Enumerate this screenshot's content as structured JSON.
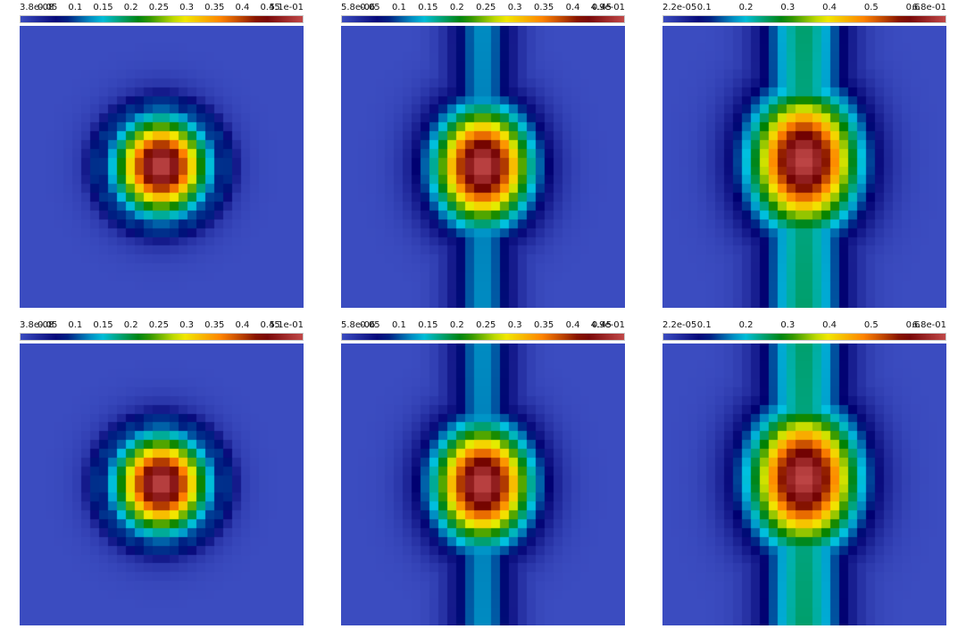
{
  "chart_data": [
    {
      "type": "heatmap",
      "ticks": [
        "3.8e-08",
        "0.05",
        "0.1",
        "0.15",
        "0.2",
        "0.25",
        "0.3",
        "0.35",
        "0.4",
        "0.45",
        "5.1e-01"
      ],
      "vmin": 3.8e-08,
      "vmax": 0.51,
      "fwhm_x": 0.17,
      "fwhm_y": 0.18,
      "ring_radius": 0.23,
      "ring_width": 0.045,
      "band_width": 0.0,
      "tail_value": 0.0,
      "center_x": 0.5,
      "center_y": 0.5
    },
    {
      "type": "heatmap",
      "ticks": [
        "5.8e-06",
        "0.05",
        "0.1",
        "0.15",
        "0.2",
        "0.25",
        "0.3",
        "0.35",
        "0.4",
        "0.45",
        "4.9e-01"
      ],
      "vmin": 5.8e-06,
      "vmax": 0.49,
      "fwhm_x": 0.18,
      "fwhm_y": 0.22,
      "ring_radius": 0.21,
      "ring_width": 0.05,
      "band_width": 0.13,
      "tail_value": 0.13,
      "center_x": 0.5,
      "center_y": 0.5
    },
    {
      "type": "heatmap",
      "ticks": [
        "2.2e-05",
        "0.1",
        "0.2",
        "0.3",
        "0.4",
        "0.5",
        "0.6",
        "6.8e-01"
      ],
      "vmin": 2.2e-05,
      "vmax": 0.68,
      "fwhm_x": 0.2,
      "fwhm_y": 0.26,
      "ring_radius": 0.0,
      "ring_width": 0.0,
      "band_width": 0.17,
      "tail_value": 0.26,
      "center_x": 0.5,
      "center_y": 0.48
    },
    {
      "type": "heatmap",
      "ticks": [
        "3.8e-08",
        "0.05",
        "0.1",
        "0.15",
        "0.2",
        "0.25",
        "0.3",
        "0.35",
        "0.4",
        "0.45",
        "5.1e-01"
      ],
      "vmin": 3.8e-08,
      "vmax": 0.51,
      "fwhm_x": 0.17,
      "fwhm_y": 0.18,
      "ring_radius": 0.23,
      "ring_width": 0.045,
      "band_width": 0.0,
      "tail_value": 0.0,
      "center_x": 0.5,
      "center_y": 0.5
    },
    {
      "type": "heatmap",
      "ticks": [
        "5.8e-06",
        "0.05",
        "0.1",
        "0.15",
        "0.2",
        "0.25",
        "0.3",
        "0.35",
        "0.4",
        "0.45",
        "4.9e-01"
      ],
      "vmin": 5.8e-06,
      "vmax": 0.49,
      "fwhm_x": 0.18,
      "fwhm_y": 0.22,
      "ring_radius": 0.21,
      "ring_width": 0.05,
      "band_width": 0.13,
      "tail_value": 0.13,
      "center_x": 0.5,
      "center_y": 0.5
    },
    {
      "type": "heatmap",
      "ticks": [
        "2.2e-05",
        "0.1",
        "0.2",
        "0.3",
        "0.4",
        "0.5",
        "0.6",
        "6.8e-01"
      ],
      "vmin": 2.2e-05,
      "vmax": 0.68,
      "fwhm_x": 0.2,
      "fwhm_y": 0.26,
      "ring_radius": 0.0,
      "ring_width": 0.0,
      "band_width": 0.17,
      "tail_value": 0.26,
      "center_x": 0.5,
      "center_y": 0.48
    }
  ],
  "colormap": [
    "#3b4cc0",
    "#000070",
    "#00c0e0",
    "#008000",
    "#f0f000",
    "#ff8000",
    "#700000",
    "#c04848"
  ]
}
